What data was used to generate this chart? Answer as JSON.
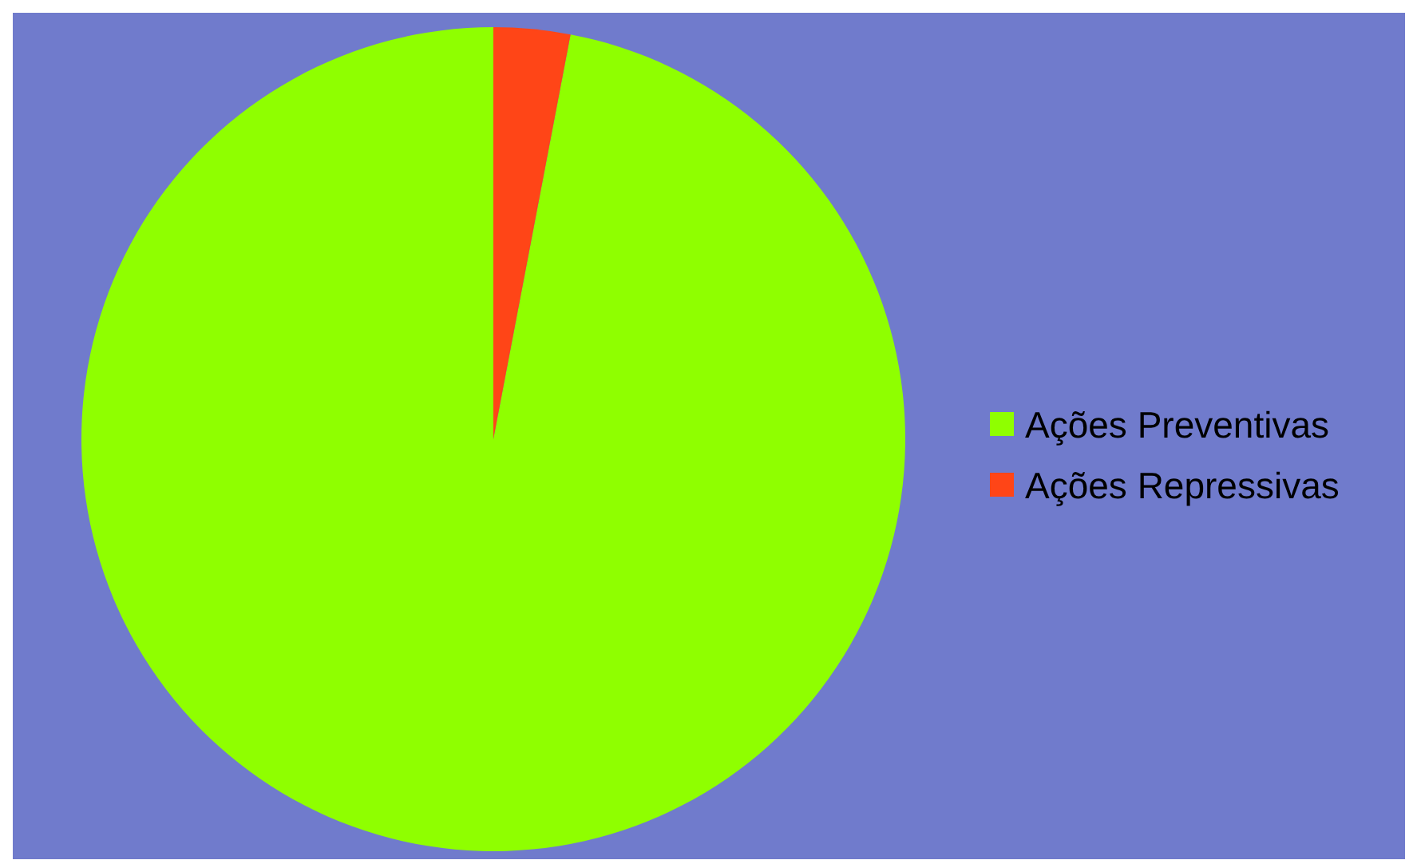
{
  "chart_data": {
    "type": "pie",
    "categories": [
      "Ações Preventivas",
      "Ações Repressivas"
    ],
    "values": [
      97,
      3
    ],
    "colors": [
      "#8fff00",
      "#ff4517"
    ],
    "legend": "right"
  }
}
